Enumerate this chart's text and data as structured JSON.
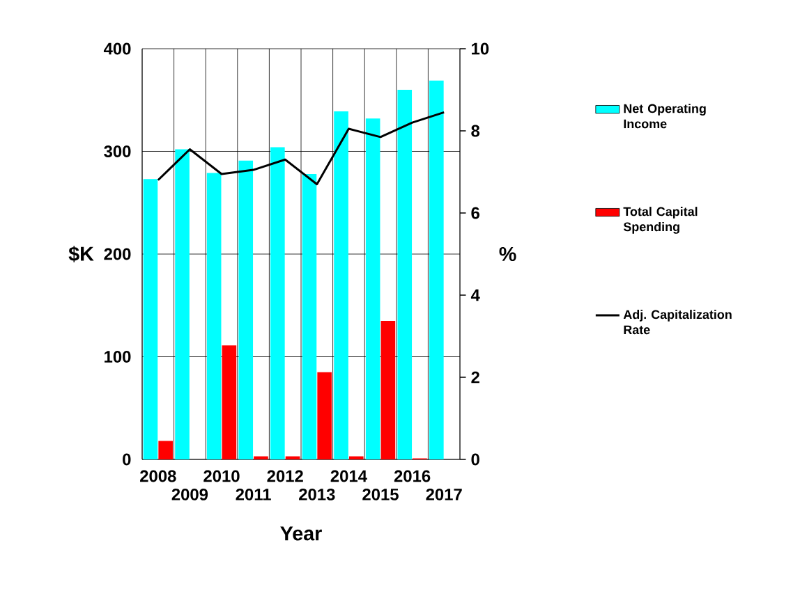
{
  "chart_data": {
    "type": "bar",
    "xlabel": "Year",
    "ylabel": "$K",
    "y2label": "%",
    "categories": [
      "2008",
      "2009",
      "2010",
      "2011",
      "2012",
      "2013",
      "2014",
      "2015",
      "2016",
      "2017"
    ],
    "series": [
      {
        "name": "Net Operating Income",
        "color": "#00ffff",
        "values": [
          273,
          302,
          279,
          291,
          304,
          278,
          339,
          332,
          360,
          369
        ]
      },
      {
        "name": "Total Capital Spending",
        "color": "#ff0000",
        "values": [
          18,
          0,
          111,
          3,
          3,
          85,
          3,
          135,
          1,
          0
        ]
      },
      {
        "name": "Adj. Capitalization Rate",
        "type": "line",
        "axis": "y2",
        "color": "#000000",
        "values": [
          6.8,
          7.55,
          6.95,
          7.05,
          7.3,
          6.7,
          8.05,
          7.85,
          8.2,
          8.45
        ]
      }
    ],
    "ylim": [
      0,
      400
    ],
    "yticks": [
      0,
      100,
      200,
      300,
      400
    ],
    "y2lim": [
      0,
      10
    ],
    "y2ticks": [
      0,
      2,
      4,
      6,
      8,
      10
    ],
    "grid": true,
    "legend": "right"
  }
}
